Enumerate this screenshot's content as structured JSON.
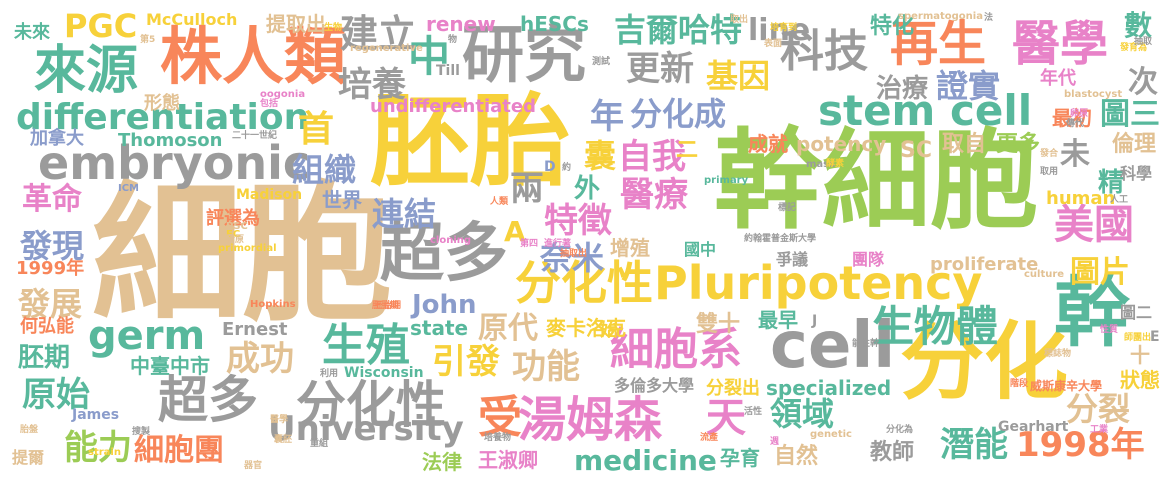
{
  "palette": {
    "tan": "#e2c193",
    "orange": "#f8865a",
    "teal": "#58b89c",
    "gray": "#9b9b9b",
    "gold": "#f7d13a",
    "green": "#9ccc55",
    "pink": "#e882c8",
    "blue": "#8a9ccb"
  },
  "words": [
    {
      "text": "細胞",
      "color": "tan"
    },
    {
      "text": "幹細胞",
      "color": "green"
    },
    {
      "text": "胚胎",
      "color": "gold"
    },
    {
      "text": "分化",
      "color": "gold"
    },
    {
      "text": "超多",
      "color": "gray"
    },
    {
      "text": "分化性",
      "color": "gold"
    },
    {
      "text": "Pluripotency",
      "color": "gold"
    },
    {
      "text": "cell",
      "color": "gray"
    },
    {
      "text": "幹",
      "color": "teal"
    },
    {
      "text": "研究",
      "color": "gray"
    },
    {
      "text": "株人類",
      "color": "orange"
    },
    {
      "text": "來源",
      "color": "teal"
    },
    {
      "text": "embryonic",
      "color": "gray"
    },
    {
      "text": "differentiation",
      "color": "teal"
    },
    {
      "text": "stem cell",
      "color": "teal"
    },
    {
      "text": "醫學",
      "color": "pink"
    },
    {
      "text": "再生",
      "color": "orange"
    },
    {
      "text": "科技",
      "color": "gray"
    },
    {
      "text": "細胞系",
      "color": "pink"
    },
    {
      "text": "湯姆森",
      "color": "pink"
    },
    {
      "text": "超多",
      "color": "gray"
    },
    {
      "text": "分化性",
      "color": "gray"
    },
    {
      "text": "germ",
      "color": "teal"
    },
    {
      "text": "生殖",
      "color": "teal"
    },
    {
      "text": "生物體",
      "color": "teal"
    },
    {
      "text": "University",
      "color": "gray"
    },
    {
      "text": "美國",
      "color": "pink"
    },
    {
      "text": "中",
      "color": "teal"
    },
    {
      "text": "建立",
      "color": "gray"
    },
    {
      "text": "培養",
      "color": "gray"
    },
    {
      "text": "吉爾哈特",
      "color": "teal"
    },
    {
      "text": "更新",
      "color": "gray"
    },
    {
      "text": "基因",
      "color": "gold"
    },
    {
      "text": "line",
      "color": "gray"
    },
    {
      "text": "治療",
      "color": "gray"
    },
    {
      "text": "證實",
      "color": "blue"
    },
    {
      "text": "年",
      "color": "blue"
    },
    {
      "text": "分化成",
      "color": "blue"
    },
    {
      "text": "首",
      "color": "gold"
    },
    {
      "text": "自我",
      "color": "pink"
    },
    {
      "text": "組織",
      "color": "blue"
    },
    {
      "text": "連結",
      "color": "blue"
    },
    {
      "text": "特徵",
      "color": "pink"
    },
    {
      "text": "奈米",
      "color": "blue"
    },
    {
      "text": "醫療",
      "color": "pink"
    },
    {
      "text": "兩",
      "color": "gray"
    },
    {
      "text": "A",
      "color": "gold"
    },
    {
      "text": "PGC",
      "color": "gold"
    },
    {
      "text": "1998年",
      "color": "orange"
    },
    {
      "text": "medicine",
      "color": "teal"
    },
    {
      "text": "受",
      "color": "orange"
    },
    {
      "text": "天",
      "color": "pink"
    },
    {
      "text": "能力",
      "color": "green"
    },
    {
      "text": "細胞團",
      "color": "orange"
    },
    {
      "text": "成功",
      "color": "tan"
    },
    {
      "text": "原始",
      "color": "teal"
    },
    {
      "text": "胚期",
      "color": "teal"
    },
    {
      "text": "發展",
      "color": "tan"
    },
    {
      "text": "發現",
      "color": "blue"
    },
    {
      "text": "革命",
      "color": "pink"
    },
    {
      "text": "John",
      "color": "blue"
    },
    {
      "text": "引發",
      "color": "gold"
    },
    {
      "text": "功能",
      "color": "tan"
    },
    {
      "text": "原代",
      "color": "tan"
    },
    {
      "text": "領域",
      "color": "teal"
    },
    {
      "text": "潛能",
      "color": "teal"
    },
    {
      "text": "分裂",
      "color": "tan"
    },
    {
      "text": "圖片",
      "color": "gold"
    },
    {
      "text": "囊",
      "color": "gold"
    },
    {
      "text": "外",
      "color": "teal"
    },
    {
      "text": "未",
      "color": "gray"
    },
    {
      "text": "精",
      "color": "teal"
    },
    {
      "text": "次",
      "color": "gray"
    },
    {
      "text": "圖三",
      "color": "teal"
    },
    {
      "text": "數",
      "color": "teal"
    },
    {
      "text": "特化",
      "color": "teal"
    },
    {
      "text": "年代",
      "color": "pink"
    },
    {
      "text": "成就",
      "color": "orange"
    },
    {
      "text": "potency",
      "color": "tan"
    },
    {
      "text": "取自",
      "color": "tan"
    },
    {
      "text": "更多",
      "color": "green"
    },
    {
      "text": "最初",
      "color": "orange"
    },
    {
      "text": "倫理",
      "color": "tan"
    },
    {
      "text": "SC",
      "color": "tan"
    },
    {
      "text": "二",
      "color": "gold"
    },
    {
      "text": "形態",
      "color": "tan"
    },
    {
      "text": "undifferentiated",
      "color": "pink"
    },
    {
      "text": "renew",
      "color": "pink"
    },
    {
      "text": "hESCs",
      "color": "teal"
    },
    {
      "text": "提取出",
      "color": "tan"
    },
    {
      "text": "McCulloch",
      "color": "gold"
    },
    {
      "text": "未來",
      "color": "teal"
    },
    {
      "text": "Thomoson",
      "color": "teal"
    },
    {
      "text": "加拿大",
      "color": "blue"
    },
    {
      "text": "評選為",
      "color": "orange"
    },
    {
      "text": "世界",
      "color": "blue"
    },
    {
      "text": "1999年",
      "color": "orange"
    },
    {
      "text": "何弘能",
      "color": "orange"
    },
    {
      "text": "中臺中市",
      "color": "teal"
    },
    {
      "text": "Ernest",
      "color": "gray"
    },
    {
      "text": "state",
      "color": "teal"
    },
    {
      "text": "麥卡洛克",
      "color": "gold"
    },
    {
      "text": "雙十",
      "color": "tan"
    },
    {
      "text": "最早",
      "color": "teal"
    },
    {
      "text": "分裂出",
      "color": "gold"
    },
    {
      "text": "specialized",
      "color": "teal"
    },
    {
      "text": "多倫多大學",
      "color": "gray"
    },
    {
      "text": "狀態",
      "color": "gold"
    },
    {
      "text": "法律",
      "color": "green"
    },
    {
      "text": "王淑卿",
      "color": "pink"
    },
    {
      "text": "孕育",
      "color": "teal"
    },
    {
      "text": "自然",
      "color": "tan"
    },
    {
      "text": "教師",
      "color": "gray"
    },
    {
      "text": "增殖",
      "color": "tan"
    },
    {
      "text": "國中",
      "color": "teal"
    },
    {
      "text": "proliferate",
      "color": "tan"
    },
    {
      "text": "human",
      "color": "gold"
    },
    {
      "text": "團隊",
      "color": "pink"
    },
    {
      "text": "爭議",
      "color": "gray"
    },
    {
      "text": "科學",
      "color": "gray"
    },
    {
      "text": "十",
      "color": "tan"
    },
    {
      "text": "圖二",
      "color": "gray"
    },
    {
      "text": "Madison",
      "color": "gold"
    },
    {
      "text": "Wisconsin",
      "color": "teal"
    },
    {
      "text": "James",
      "color": "blue"
    },
    {
      "text": "Gearhart",
      "color": "gray"
    },
    {
      "text": "提爾",
      "color": "tan"
    },
    {
      "text": "威斯康辛大學",
      "color": "orange"
    },
    {
      "text": "始",
      "color": "gold"
    },
    {
      "text": "E",
      "color": "gray"
    },
    {
      "text": "J",
      "color": "gray"
    },
    {
      "text": "D",
      "color": "blue"
    },
    {
      "text": "Till",
      "color": "gray"
    },
    {
      "text": "oogonia",
      "color": "pink"
    },
    {
      "text": "spermatogonia",
      "color": "tan"
    },
    {
      "text": "blastocyst",
      "color": "tan"
    },
    {
      "text": "regenerative",
      "color": "tan"
    },
    {
      "text": "primordial",
      "color": "gold"
    },
    {
      "text": "mass",
      "color": "gray"
    },
    {
      "text": "primary",
      "color": "teal"
    },
    {
      "text": "cloning",
      "color": "pink"
    },
    {
      "text": "strain",
      "color": "gold"
    },
    {
      "text": "culture",
      "color": "tan"
    },
    {
      "text": "genetic",
      "color": "tan"
    },
    {
      "text": "Hopkins",
      "color": "orange"
    },
    {
      "text": "ICM",
      "color": "blue"
    },
    {
      "text": "EC",
      "color": "gold"
    },
    {
      "text": "PSC",
      "color": "tan"
    },
    {
      "text": "二十一世紀",
      "color": "gray"
    },
    {
      "text": "約翰霍普金斯大學",
      "color": "gray"
    },
    {
      "text": "抽取出",
      "color": "orange"
    },
    {
      "text": "進行著",
      "color": "pink"
    },
    {
      "text": "培育到",
      "color": "gold"
    },
    {
      "text": "胚胎期",
      "color": "orange"
    },
    {
      "text": "第四",
      "color": "pink"
    },
    {
      "text": "人類",
      "color": "orange"
    },
    {
      "text": "精原",
      "color": "tan"
    },
    {
      "text": "囊胚",
      "color": "tan"
    },
    {
      "text": "胎盤",
      "color": "tan"
    },
    {
      "text": "醫學",
      "color": "tan"
    },
    {
      "text": "器官",
      "color": "tan"
    },
    {
      "text": "人工",
      "color": "gray"
    },
    {
      "text": "卵原",
      "color": "pink"
    },
    {
      "text": "傳代",
      "color": "gray"
    },
    {
      "text": "發育為",
      "color": "gold"
    },
    {
      "text": "抽取",
      "color": "gray"
    },
    {
      "text": "包括",
      "color": "pink"
    },
    {
      "text": "測試",
      "color": "gray"
    },
    {
      "text": "第5",
      "color": "tan"
    },
    {
      "text": "生物",
      "color": "gold"
    },
    {
      "text": "物",
      "color": "gray"
    },
    {
      "text": "約",
      "color": "gray"
    },
    {
      "text": "週",
      "color": "pink"
    },
    {
      "text": "酵素",
      "color": "gold"
    },
    {
      "text": "標記",
      "color": "gray"
    },
    {
      "text": "分化為",
      "color": "gray"
    },
    {
      "text": "利用",
      "color": "gray"
    },
    {
      "text": "標誌物",
      "color": "tan"
    },
    {
      "text": "性質",
      "color": "pink"
    },
    {
      "text": "師團出",
      "color": "gold"
    },
    {
      "text": "能性幹",
      "color": "gray"
    },
    {
      "text": "活性",
      "color": "gray"
    },
    {
      "text": "重組",
      "color": "gray"
    },
    {
      "text": "搜製",
      "color": "gray"
    },
    {
      "text": "流產",
      "color": "orange"
    },
    {
      "text": "階段",
      "color": "orange"
    },
    {
      "text": "工業",
      "color": "pink"
    },
    {
      "text": "表面",
      "color": "tan"
    },
    {
      "text": "法",
      "color": "gray"
    },
    {
      "text": "取出",
      "color": "tan"
    },
    {
      "text": "發合",
      "color": "tan"
    },
    {
      "text": "胚胎期",
      "color": "orange"
    },
    {
      "text": "取用",
      "color": "gray"
    },
    {
      "text": "培養物",
      "color": "gray"
    }
  ]
}
